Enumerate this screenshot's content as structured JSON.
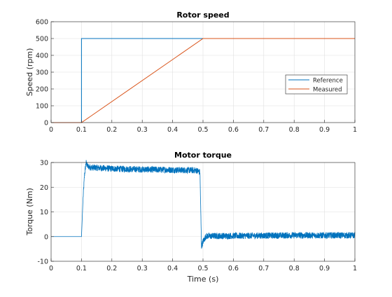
{
  "chart_data": [
    {
      "type": "line",
      "title": "Rotor speed",
      "xlabel": "",
      "ylabel": "Speed (rpm)",
      "xlim": [
        0,
        1
      ],
      "ylim": [
        0,
        600
      ],
      "xticks": [
        "0",
        "0.1",
        "0.2",
        "0.3",
        "0.4",
        "0.5",
        "0.6",
        "0.7",
        "0.8",
        "0.9",
        "1"
      ],
      "yticks": [
        "0",
        "100",
        "200",
        "300",
        "400",
        "500",
        "600"
      ],
      "grid": true,
      "legend_position": "right",
      "series": [
        {
          "name": "Reference",
          "color": "#0072BD",
          "x": [
            0,
            0.1,
            0.1,
            1
          ],
          "y": [
            0,
            0,
            500,
            500
          ]
        },
        {
          "name": "Measured",
          "color": "#D95319",
          "x": [
            0,
            0.1,
            0.5,
            1
          ],
          "y": [
            0,
            0,
            500,
            500
          ]
        }
      ]
    },
    {
      "type": "line",
      "title": "Motor torque",
      "xlabel": "Time (s)",
      "ylabel": "Torque (Nm)",
      "xlim": [
        0,
        1
      ],
      "ylim": [
        -10,
        30
      ],
      "xticks": [
        "0",
        "0.1",
        "0.2",
        "0.3",
        "0.4",
        "0.5",
        "0.6",
        "0.7",
        "0.8",
        "0.9",
        "1"
      ],
      "yticks": [
        "-10",
        "0",
        "10",
        "20",
        "30"
      ],
      "grid": true,
      "series": [
        {
          "color": "#0072BD",
          "x": [
            0,
            0.1,
            0.105,
            0.11,
            0.115,
            0.12,
            0.13,
            0.2,
            0.3,
            0.4,
            0.48,
            0.49,
            0.495,
            0.5,
            0.51,
            0.6,
            0.7,
            0.8,
            0.9,
            1
          ],
          "y": [
            0,
            0,
            15,
            25,
            30,
            28.5,
            28,
            27.5,
            27.2,
            27,
            26.8,
            26,
            -4,
            -2,
            0.2,
            0.3,
            0.4,
            0.5,
            0.5,
            0.5
          ],
          "noise_band": 1.3
        }
      ]
    }
  ]
}
